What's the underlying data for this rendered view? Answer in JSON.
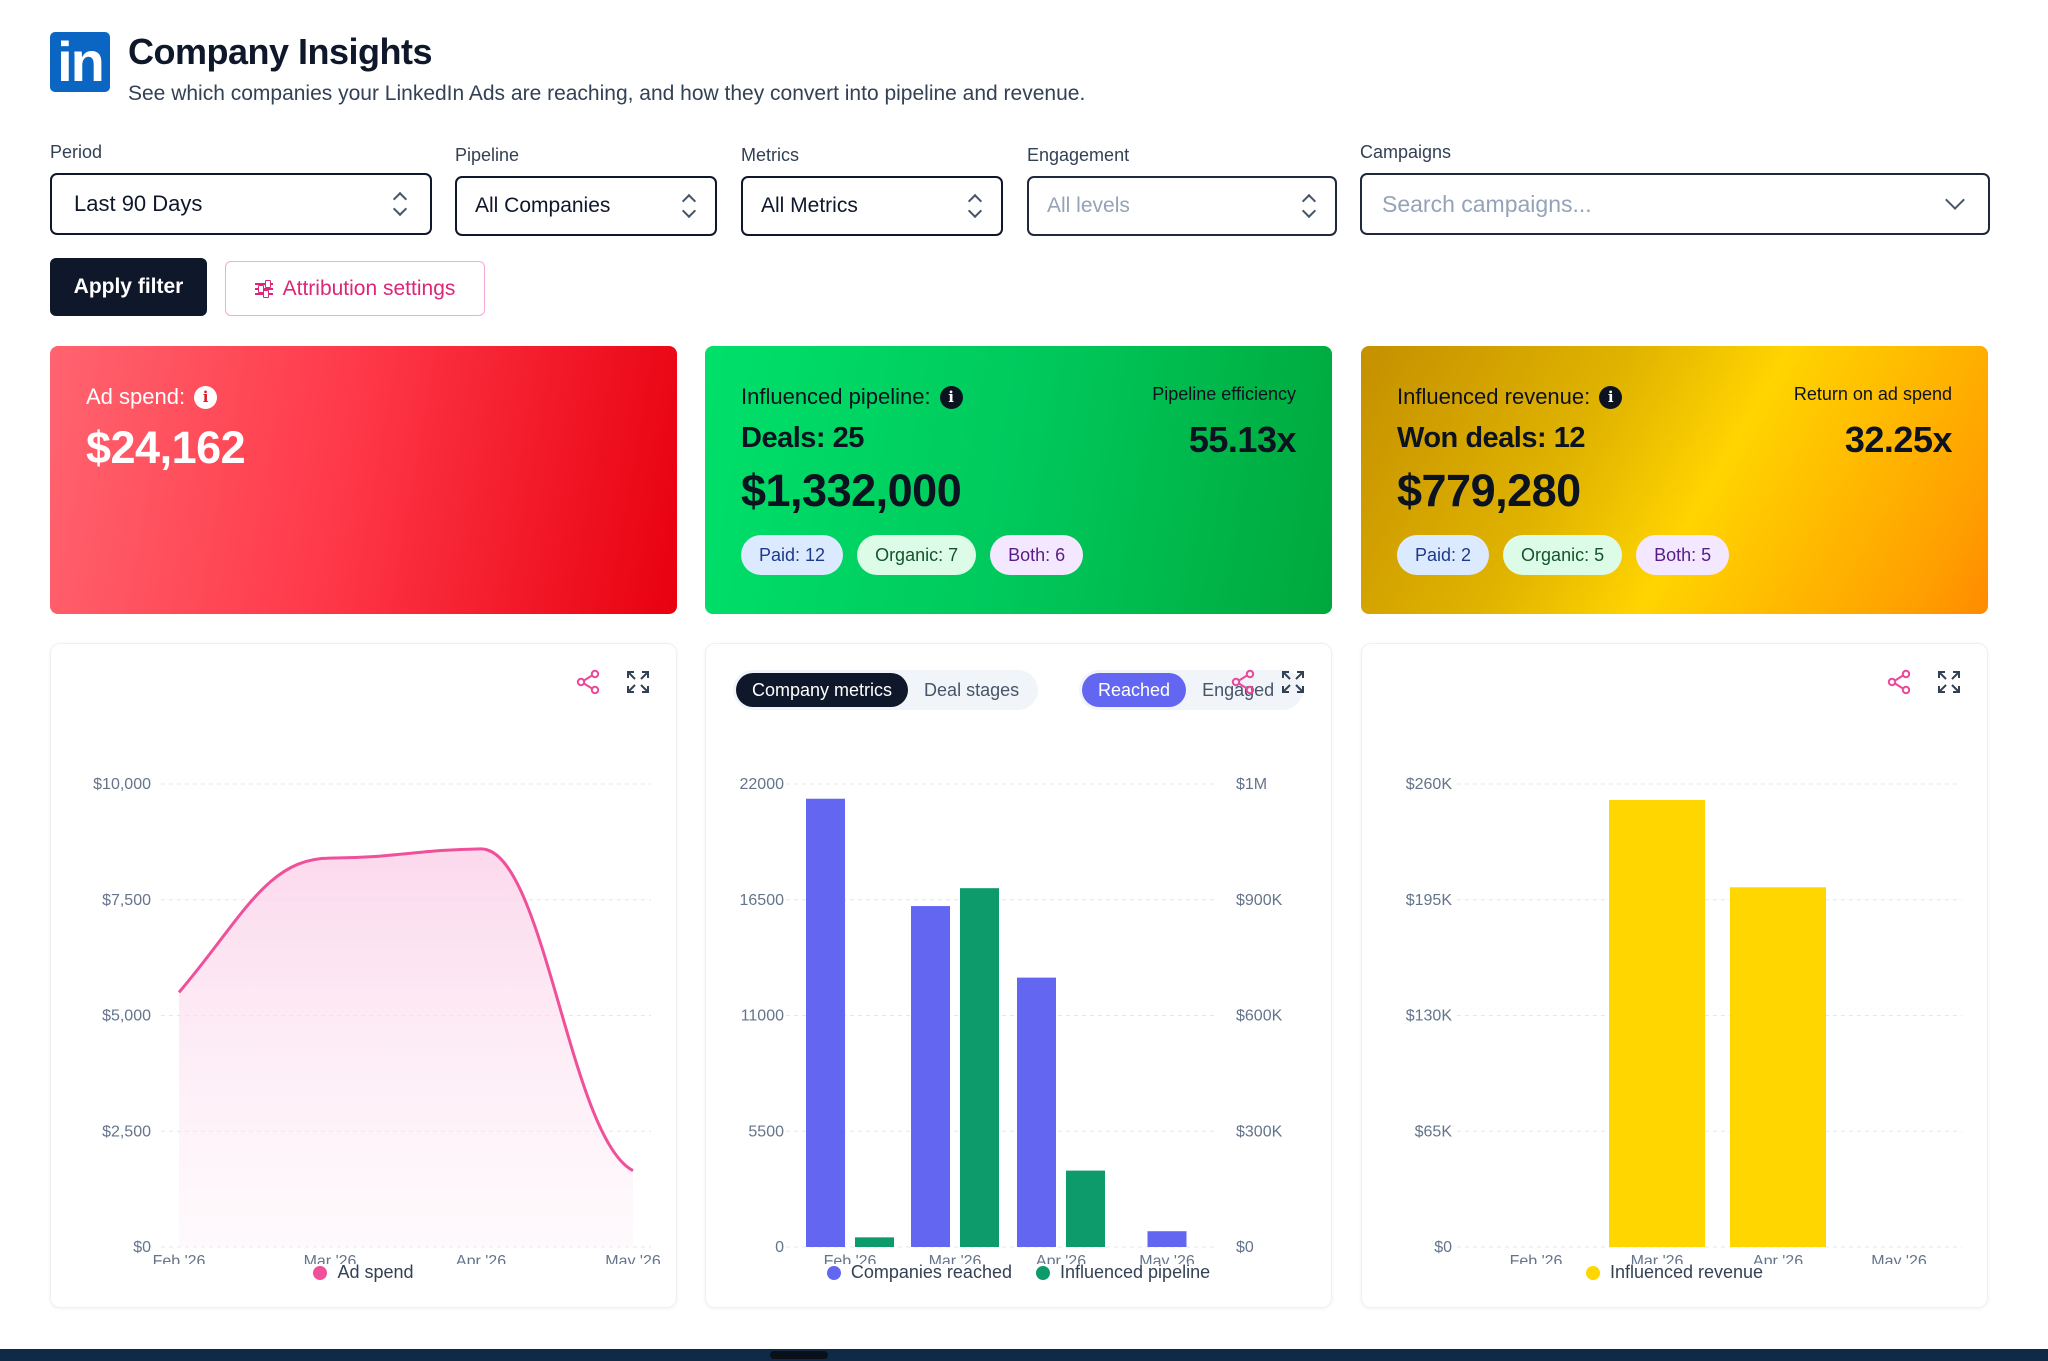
{
  "header": {
    "logo_text": "in",
    "title": "Company Insights",
    "subtitle": "See which companies your LinkedIn Ads are reaching, and how they convert into pipeline and revenue."
  },
  "filters": {
    "period": {
      "label": "Period",
      "value": "Last 90 Days"
    },
    "pipeline": {
      "label": "Pipeline",
      "value": "All Companies"
    },
    "metrics": {
      "label": "Metrics",
      "value": "All Metrics"
    },
    "engagement": {
      "label": "Engagement",
      "placeholder": "All levels"
    },
    "campaigns": {
      "label": "Campaigns",
      "placeholder": "Search campaigns..."
    }
  },
  "actions": {
    "apply": "Apply filter",
    "attribution": "Attribution settings"
  },
  "kpis": {
    "spend": {
      "label": "Ad spend:",
      "value": "$24,162"
    },
    "pipeline": {
      "label": "Influenced pipeline:",
      "deals": "Deals: 25",
      "value": "$1,332,000",
      "efficiency_label": "Pipeline efficiency",
      "efficiency_value": "55.13x",
      "paid": "Paid: 12",
      "organic": "Organic: 7",
      "both": "Both: 6"
    },
    "revenue": {
      "label": "Influenced revenue:",
      "deals": "Won deals: 12",
      "value": "$779,280",
      "roas_label": "Return on ad spend",
      "roas_value": "32.25x",
      "paid": "Paid: 2",
      "organic": "Organic: 5",
      "both": "Both: 5"
    }
  },
  "tabs": {
    "company_metrics": "Company metrics",
    "deal_stages": "Deal stages",
    "reached": "Reached",
    "engaged": "Engaged"
  },
  "colors": {
    "ad_spend": "#f0509a",
    "reached": "#6366f1",
    "pipeline": "#0e9b6b",
    "revenue": "#ffd600"
  },
  "chart_data": [
    {
      "type": "area",
      "x": [
        "Feb '26",
        "Mar '26",
        "Apr '26",
        "May '26"
      ],
      "series": [
        {
          "name": "Ad spend",
          "values": [
            5500,
            8400,
            8600,
            1650
          ]
        }
      ],
      "y_ticks": [
        "$0",
        "$2,500",
        "$5,000",
        "$7,500",
        "$10,000"
      ],
      "ylim": [
        0,
        10000
      ],
      "grid": true,
      "legend": "bottom"
    },
    {
      "type": "bar",
      "categories": [
        "Feb '26",
        "Mar '26",
        "Apr '26",
        "May '26"
      ],
      "series": [
        {
          "name": "Companies reached",
          "values": [
            21300,
            16200,
            12800,
            750
          ],
          "axis": "left"
        },
        {
          "name": "Influenced pipeline",
          "values": [
            25000,
            930000,
            198000,
            0
          ],
          "axis": "right"
        }
      ],
      "y_left_ticks": [
        "0",
        "5500",
        "11000",
        "16500",
        "22000"
      ],
      "y_left_lim": [
        0,
        22000
      ],
      "y_right_ticks": [
        "$0",
        "$300K",
        "$600K",
        "$900K",
        "$1M"
      ],
      "y_right_lim": [
        0,
        1200000
      ],
      "grid": true,
      "legend": "bottom"
    },
    {
      "type": "bar",
      "categories": [
        "Feb '26",
        "Mar '26",
        "Apr '26",
        "May '26"
      ],
      "series": [
        {
          "name": "Influenced revenue",
          "values": [
            0,
            251000,
            202000,
            0
          ]
        }
      ],
      "y_ticks": [
        "$0",
        "$65K",
        "$130K",
        "$195K",
        "$260K"
      ],
      "ylim": [
        0,
        260000
      ],
      "grid": true,
      "legend": "bottom"
    }
  ]
}
